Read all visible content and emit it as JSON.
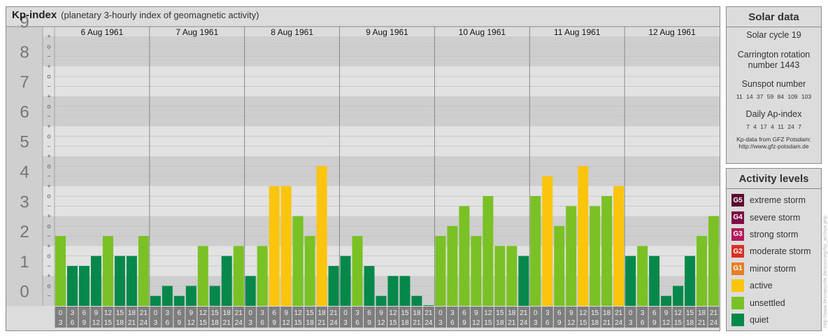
{
  "header": {
    "title": "Kp-index",
    "subtitle": "(planetary 3-hourly index of geomagnetic activity)"
  },
  "chart_data": {
    "type": "bar",
    "ylim": [
      0,
      9
    ],
    "y_ticks": [
      "0",
      "1",
      "2",
      "3",
      "4",
      "5",
      "6",
      "7",
      "8",
      "9"
    ],
    "y_minor_labels": [
      "+",
      "o",
      "−"
    ],
    "days": [
      "6 Aug 1961",
      "7 Aug 1961",
      "8 Aug 1961",
      "9 Aug 1961",
      "10 Aug 1961",
      "11 Aug 1961",
      "12 Aug 1961"
    ],
    "hour_start": [
      "0",
      "3",
      "6",
      "9",
      "12",
      "15",
      "18",
      "21"
    ],
    "hour_end": [
      "3",
      "6",
      "9",
      "12",
      "15",
      "18",
      "21",
      "24"
    ],
    "values": [
      [
        2.333,
        1.333,
        1.333,
        1.667,
        2.333,
        1.667,
        1.667,
        2.333
      ],
      [
        0.333,
        0.667,
        0.333,
        0.667,
        2.0,
        0.667,
        1.667,
        2.0
      ],
      [
        1.0,
        2.0,
        4.0,
        4.0,
        3.0,
        2.333,
        4.667,
        1.333
      ],
      [
        1.667,
        2.333,
        1.333,
        0.333,
        1.0,
        1.0,
        0.333,
        0.0
      ],
      [
        2.333,
        2.667,
        3.333,
        2.333,
        3.667,
        2.0,
        2.0,
        1.667
      ],
      [
        3.667,
        4.333,
        2.667,
        3.333,
        4.667,
        3.333,
        3.667,
        4.0
      ],
      [
        1.667,
        2.0,
        1.667,
        0.333,
        0.667,
        1.667,
        2.333,
        3.0
      ]
    ]
  },
  "solar": {
    "title": "Solar data",
    "cycle": "Solar cycle 19",
    "carrington_1": "Carrington rotation",
    "carrington_2": "number 1443",
    "sunspot_label": "Sunspot number",
    "sunspot_values": "11 14 37 59 84 109 103",
    "ap_label": "Daily Ap-index",
    "ap_values": "7 4 17 4 11 24 7",
    "credit_1": "Kp-data from GFZ Potsdam:",
    "credit_2": "http://www.gfz-potsdam.de"
  },
  "activity": {
    "title": "Activity levels",
    "levels": [
      {
        "code": "G5",
        "label": "extreme storm",
        "color": "#5c0a2e"
      },
      {
        "code": "G4",
        "label": "severe storm",
        "color": "#7f0d45"
      },
      {
        "code": "G3",
        "label": "strong storm",
        "color": "#b01c5c"
      },
      {
        "code": "G2",
        "label": "moderate storm",
        "color": "#d93023"
      },
      {
        "code": "G1",
        "label": "minor storm",
        "color": "#e67e22"
      },
      {
        "code": "",
        "label": "active",
        "color": "#fbc40d"
      },
      {
        "code": "",
        "label": "unsettled",
        "color": "#79c125"
      },
      {
        "code": "",
        "label": "quiet",
        "color": "#07884b"
      }
    ]
  },
  "watermark": "http://www.fleuraeurofe.de/sourcegr/kp_archive.php"
}
